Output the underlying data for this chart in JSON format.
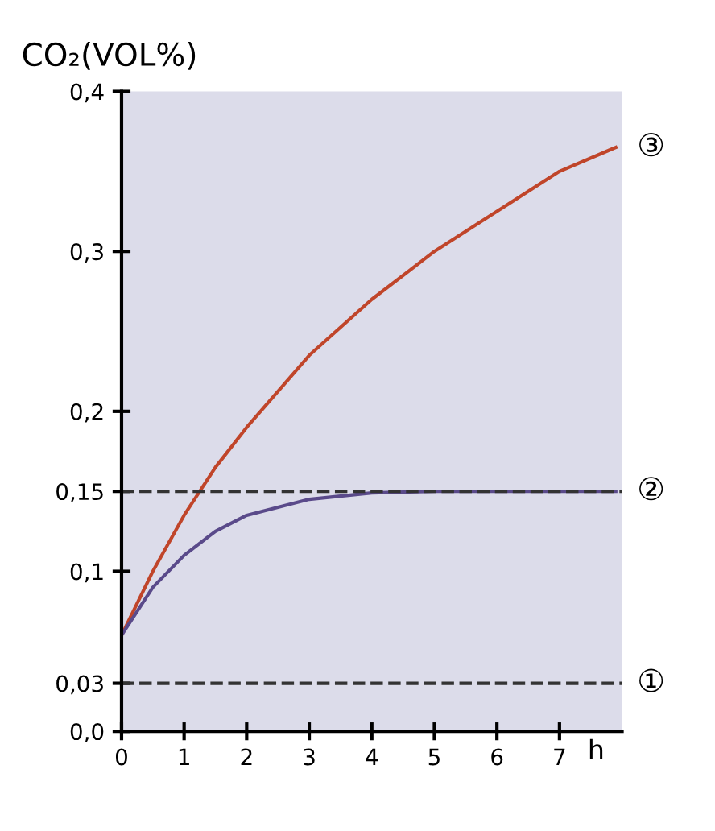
{
  "chart_data": {
    "type": "line",
    "ylabel": "CO₂(VOL%)",
    "xlabel": "h",
    "series": [
      {
        "name": "③",
        "color": "#c0452a",
        "x": [
          0,
          0.5,
          1,
          1.5,
          2,
          3,
          4,
          5,
          6,
          7,
          7.9
        ],
        "values": [
          0.06,
          0.1,
          0.135,
          0.165,
          0.19,
          0.235,
          0.27,
          0.3,
          0.325,
          0.35,
          0.365
        ]
      },
      {
        "color": "#5a4a8a",
        "x": [
          0,
          0.5,
          1,
          1.5,
          2,
          3,
          4,
          5,
          6,
          7,
          7.9
        ],
        "values": [
          0.06,
          0.09,
          0.11,
          0.125,
          0.135,
          0.145,
          0.149,
          0.15,
          0.15,
          0.15,
          0.15
        ]
      }
    ],
    "ref_lines": [
      {
        "axis": "y",
        "value": 0.15,
        "label": "②",
        "color": "#333333",
        "line_style": "dashed"
      },
      {
        "axis": "y",
        "value": 0.03,
        "label": "①",
        "color": "#333333",
        "line_style": "dashed"
      }
    ],
    "xlim": [
      0,
      8
    ],
    "ylim": [
      0,
      0.4
    ],
    "xticks": [
      0,
      1,
      2,
      3,
      4,
      5,
      6,
      7
    ],
    "yticks": [
      {
        "value": 0,
        "label": "0,0"
      },
      {
        "value": 0.03,
        "label": "0,03"
      },
      {
        "value": 0.1,
        "label": "0,1"
      },
      {
        "value": 0.15,
        "label": "0,15"
      },
      {
        "value": 0.2,
        "label": "0,2"
      },
      {
        "value": 0.3,
        "label": "0,3"
      },
      {
        "value": 0.4,
        "label": "0,4"
      }
    ],
    "grid": false,
    "legend": false,
    "marker": "none",
    "line_style": "solid"
  }
}
